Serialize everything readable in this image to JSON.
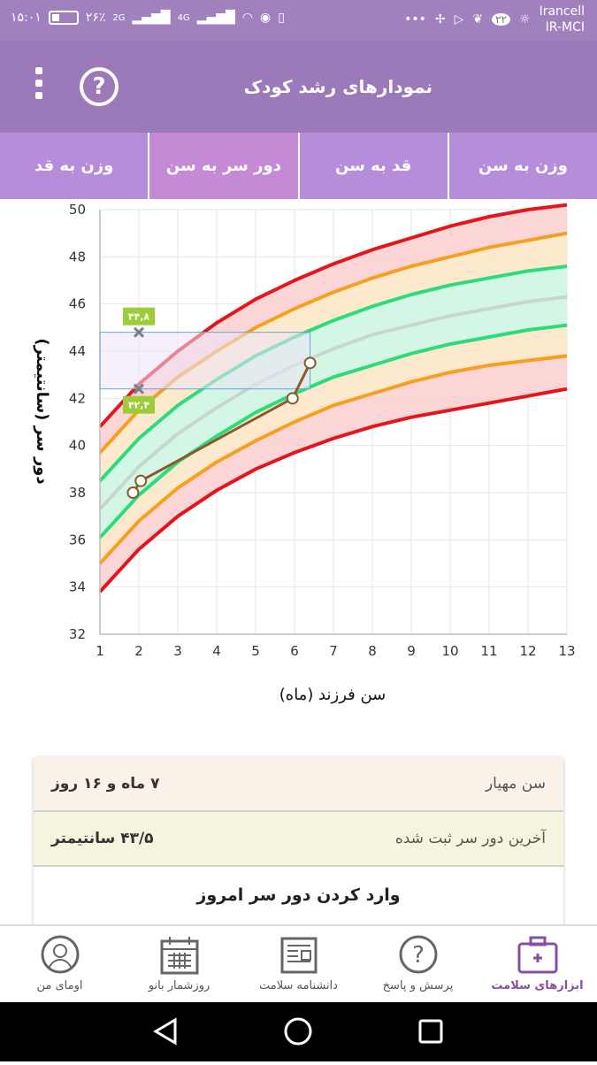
{
  "status": {
    "time": "۱۵:۰۱",
    "battery": "۲۶٪",
    "network_a": "2G",
    "network_b": "4G",
    "notif_count": "۲۲",
    "carrier_1": "Irancell",
    "carrier_2": "IR-MCI"
  },
  "appbar": {
    "title": "نمودارهای رشد کودک",
    "help_symbol": "?"
  },
  "tabs": [
    {
      "label": "وزن به سن",
      "active": false
    },
    {
      "label": "قد به سن",
      "active": false
    },
    {
      "label": "دور سر به سن",
      "active": true
    },
    {
      "label": "وزن به قد",
      "active": false
    }
  ],
  "chart_data": {
    "type": "line",
    "xlabel": "سن فرزند (ماه)",
    "ylabel": "دور سر (سانتیمتر)",
    "xlim": [
      1,
      13
    ],
    "ylim": [
      32,
      50
    ],
    "x_ticks": [
      "1",
      "2",
      "3",
      "4",
      "5",
      "6",
      "7",
      "8",
      "9",
      "10",
      "11",
      "12",
      "13"
    ],
    "y_ticks": [
      "32",
      "34",
      "36",
      "38",
      "40",
      "42",
      "44",
      "46",
      "48",
      "50"
    ],
    "x": [
      1,
      2,
      3,
      4,
      5,
      6,
      7,
      8,
      9,
      10,
      11,
      12,
      13
    ],
    "series": [
      {
        "values": [
          40.8,
          42.6,
          44.0,
          45.2,
          46.2,
          47.0,
          47.7,
          48.3,
          48.8,
          49.3,
          49.7,
          50.0,
          50.2
        ],
        "color": "#e5161b"
      },
      {
        "values": [
          39.7,
          41.5,
          42.9,
          44.0,
          45.0,
          45.8,
          46.5,
          47.1,
          47.6,
          48.0,
          48.4,
          48.7,
          49.0
        ],
        "color": "#f5a020"
      },
      {
        "values": [
          38.5,
          40.3,
          41.7,
          42.8,
          43.8,
          44.6,
          45.3,
          45.9,
          46.4,
          46.8,
          47.1,
          47.4,
          47.6
        ],
        "color": "#2edb7c"
      },
      {
        "values": [
          37.3,
          39.1,
          40.5,
          41.6,
          42.6,
          43.4,
          44.1,
          44.7,
          45.1,
          45.5,
          45.8,
          46.1,
          46.3
        ],
        "color": "#c8d6d0"
      },
      {
        "values": [
          36.1,
          37.9,
          39.3,
          40.4,
          41.4,
          42.2,
          42.9,
          43.4,
          43.9,
          44.3,
          44.6,
          44.9,
          45.1
        ],
        "color": "#2edb7c"
      },
      {
        "values": [
          35.0,
          36.8,
          38.2,
          39.3,
          40.2,
          41.0,
          41.7,
          42.2,
          42.7,
          43.1,
          43.4,
          43.6,
          43.8
        ],
        "color": "#f5a020"
      },
      {
        "values": [
          33.8,
          35.6,
          37.0,
          38.1,
          39.0,
          39.7,
          40.3,
          40.8,
          41.2,
          41.5,
          41.8,
          42.1,
          42.4
        ],
        "color": "#e5161b"
      }
    ],
    "measurements": [
      {
        "x": 1.85,
        "y": 38.0
      },
      {
        "x": 2.05,
        "y": 38.5
      },
      {
        "x": 5.95,
        "y": 42.0
      },
      {
        "x": 6.4,
        "y": 43.5
      }
    ],
    "range_box": {
      "x": [
        1,
        6.4
      ],
      "y": [
        42.4,
        44.8
      ]
    },
    "range_labels": [
      {
        "text": "۴۴,۸",
        "x": 2,
        "y": 44.8
      },
      {
        "text": "۴۲,۴",
        "x": 2,
        "y": 42.4
      }
    ],
    "grid": true
  },
  "summary": {
    "age_label": "سن مهیار",
    "age_value": "۷ ماه و ۱۶ روز",
    "last_label": "آخرین دور سر ثبت شده",
    "last_value": "۴۳/۵ سانتیمتر",
    "action": "وارد کردن دور سر امروز"
  },
  "nav": [
    {
      "label": "ابزارهای سلامت",
      "icon": "health-kit-icon",
      "active": true
    },
    {
      "label": "پرسش و پاسخ",
      "icon": "question-bubble-icon",
      "active": false
    },
    {
      "label": "دانشنامه سلامت",
      "icon": "newspaper-icon",
      "active": false
    },
    {
      "label": "روزشمار بانو",
      "icon": "calendar-icon",
      "active": false
    },
    {
      "label": "اومای من",
      "icon": "user-woman-icon",
      "active": false
    }
  ]
}
